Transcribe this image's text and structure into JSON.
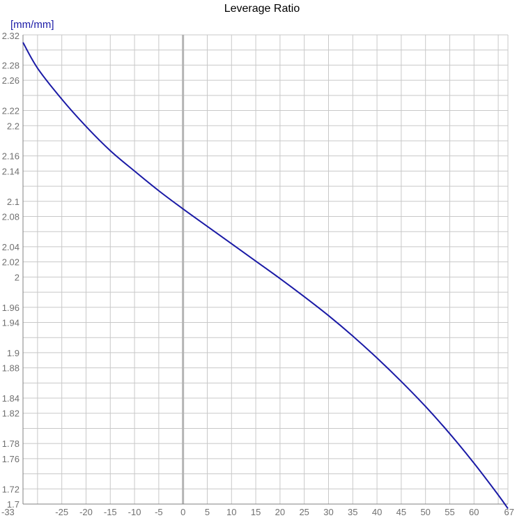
{
  "chart_data": {
    "type": "line",
    "title": "Leverage Ratio",
    "ylabel": "[mm/mm]",
    "xlabel": "",
    "xlim": [
      -33,
      67
    ],
    "ylim": [
      1.7,
      2.32
    ],
    "x_ticks": [
      -33,
      -25,
      -20,
      -15,
      -10,
      -5,
      0,
      5,
      10,
      15,
      20,
      25,
      30,
      35,
      40,
      45,
      50,
      55,
      60,
      67
    ],
    "y_ticks": [
      1.7,
      1.72,
      1.76,
      1.78,
      1.82,
      1.84,
      1.88,
      1.9,
      1.94,
      1.96,
      2,
      2.02,
      2.04,
      2.08,
      2.1,
      2.14,
      2.16,
      2.2,
      2.22,
      2.26,
      2.28,
      2.32
    ],
    "grid": true,
    "legend": "none",
    "colors": {
      "line": "#1a1aa6",
      "grid": "#c8c8c8",
      "zero_line": "#b4b4b4",
      "axis": "#808080",
      "ylabel": "#1a1aa6"
    },
    "series": [
      {
        "x": [
          -33,
          -30,
          -25,
          -20,
          -15,
          -10,
          -5,
          0,
          5,
          10,
          15,
          20,
          25,
          30,
          35,
          40,
          45,
          50,
          55,
          60,
          65,
          67
        ],
        "y": [
          2.31,
          2.276,
          2.235,
          2.199,
          2.167,
          2.14,
          2.114,
          2.09,
          2.067,
          2.044,
          2.021,
          1.998,
          1.974,
          1.949,
          1.922,
          1.893,
          1.862,
          1.829,
          1.793,
          1.754,
          1.712,
          1.694
        ]
      }
    ]
  }
}
